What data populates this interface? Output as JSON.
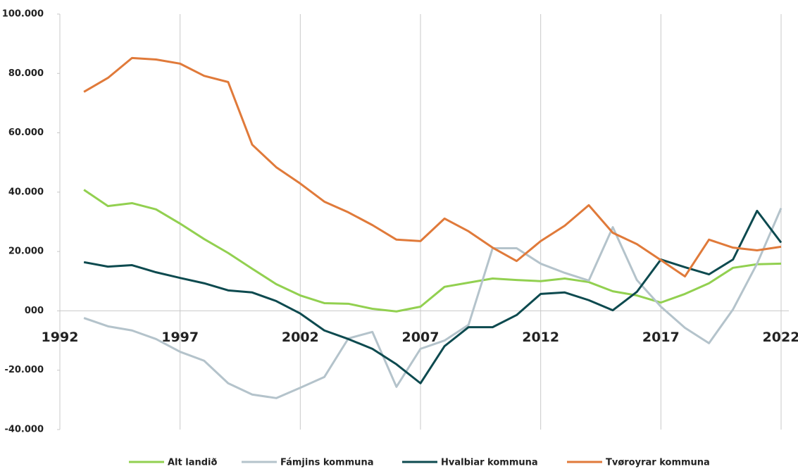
{
  "chart_data": {
    "type": "line",
    "x": [
      1993,
      1994,
      1995,
      1996,
      1997,
      1998,
      1999,
      2000,
      2001,
      2002,
      2003,
      2004,
      2005,
      2006,
      2007,
      2008,
      2009,
      2010,
      2011,
      2012,
      2013,
      2014,
      2015,
      2016,
      2017,
      2018,
      2019,
      2020,
      2021,
      2022
    ],
    "series": [
      {
        "name": "Alt landið",
        "color": "#92d050",
        "values": [
          40800,
          35300,
          36300,
          34200,
          29400,
          24200,
          19500,
          14200,
          9000,
          5200,
          2600,
          2400,
          700,
          -200,
          1400,
          8100,
          9500,
          10900,
          10400,
          10000,
          10900,
          9700,
          6600,
          5200,
          2800,
          5700,
          9300,
          14500,
          15700,
          15900
        ]
      },
      {
        "name": "Fámjins kommuna",
        "color": "#b4c3cb",
        "values": [
          -2400,
          -5200,
          -6600,
          -9500,
          -13800,
          -16800,
          -24400,
          -28200,
          -29400,
          -25900,
          -22300,
          -9300,
          -7100,
          -25600,
          -12800,
          -10000,
          -4700,
          21100,
          21100,
          15900,
          12800,
          10200,
          28200,
          10400,
          1400,
          -5700,
          -10900,
          500,
          15900,
          34600
        ]
      },
      {
        "name": "Hvalbiar kommuna",
        "color": "#0d4a4f",
        "values": [
          16400,
          14900,
          15400,
          13000,
          11100,
          9300,
          6900,
          6200,
          3300,
          -900,
          -6600,
          -9500,
          -12800,
          -18000,
          -24400,
          -11900,
          -5500,
          -5500,
          -1400,
          5700,
          6200,
          3600,
          200,
          6400,
          17300,
          14700,
          12300,
          17300,
          33700,
          23000
        ]
      },
      {
        "name": "Tvøroyrar kommuna",
        "color": "#e07a3a",
        "values": [
          73800,
          78500,
          85200,
          84700,
          83300,
          79200,
          77100,
          56000,
          48400,
          42900,
          36800,
          33200,
          28900,
          24000,
          23500,
          31100,
          26800,
          21300,
          16800,
          23500,
          28700,
          35600,
          26300,
          22500,
          17100,
          11600,
          24000,
          21300,
          20400,
          21600
        ]
      }
    ],
    "xlim": [
      1992,
      2022
    ],
    "xticks": [
      1992,
      1997,
      2002,
      2007,
      2012,
      2017,
      2022
    ],
    "ylim": [
      -40000,
      100000
    ],
    "yticks": [
      {
        "value": -40000,
        "label": "-40.000"
      },
      {
        "value": -20000,
        "label": "-20.000"
      },
      {
        "value": 0,
        "label": "000"
      },
      {
        "value": 20000,
        "label": "20.000"
      },
      {
        "value": 40000,
        "label": "40.000"
      },
      {
        "value": 60000,
        "label": "60.000"
      },
      {
        "value": 80000,
        "label": "80.000"
      },
      {
        "value": 100000,
        "label": "100.000"
      }
    ],
    "grid": true,
    "legend": "bottom"
  }
}
